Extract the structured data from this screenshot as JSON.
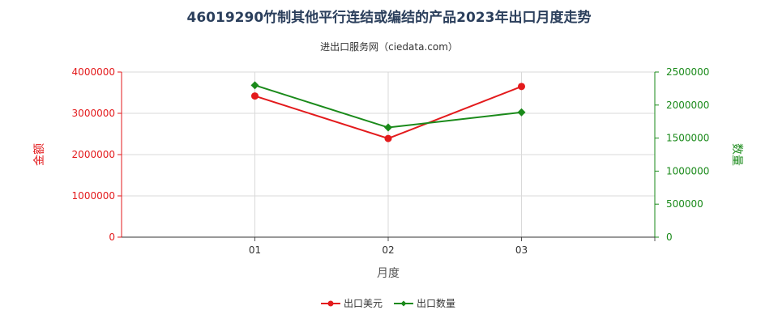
{
  "chart_data": {
    "type": "line",
    "title": "46019290竹制其他平行连结或编结的产品2023年出口月度走势",
    "subtitle": "进出口服务网（ciedata.com）",
    "xlabel": "月度",
    "ylabel_left": "金额",
    "ylabel_right": "数量",
    "categories": [
      "01",
      "02",
      "03"
    ],
    "y_left": {
      "min": 0,
      "max": 4000000,
      "ticks": [
        "0",
        "1000000",
        "2000000",
        "3000000",
        "4000000"
      ]
    },
    "y_right": {
      "min": 0,
      "max": 2500000,
      "ticks": [
        "0",
        "500000",
        "1000000",
        "1500000",
        "2000000",
        "2500000"
      ]
    },
    "grid": true,
    "legend_position": "bottom-center",
    "series": [
      {
        "name": "出口美元",
        "axis": "left",
        "color": "#e31a1c",
        "marker": "circle",
        "values": [
          3420000,
          2390000,
          3650000
        ]
      },
      {
        "name": "出口数量",
        "axis": "right",
        "color": "#1a8a1a",
        "marker": "diamond",
        "values": [
          2300000,
          1660000,
          1890000
        ]
      }
    ]
  }
}
